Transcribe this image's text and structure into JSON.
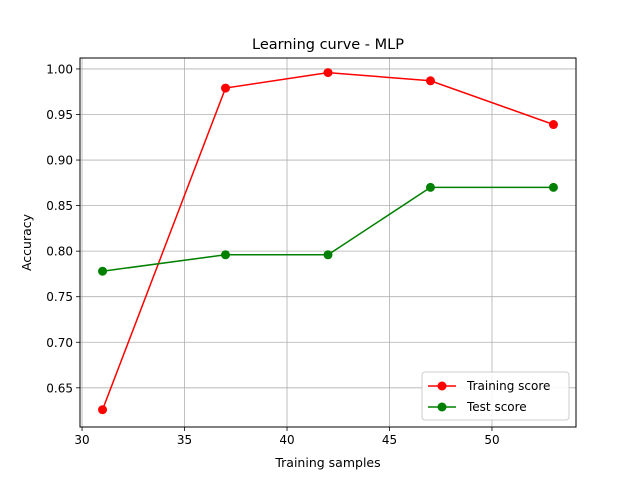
{
  "chart_data": {
    "type": "line",
    "title": "Learning curve - MLP",
    "xlabel": "Training samples",
    "ylabel": "Accuracy",
    "xlim": [
      29.9,
      54.1
    ],
    "ylim": [
      0.607,
      1.012
    ],
    "xticks": [
      30,
      35,
      40,
      45,
      50
    ],
    "yticks": [
      0.65,
      0.7,
      0.75,
      0.8,
      0.85,
      0.9,
      0.95,
      1.0
    ],
    "xtick_labels": [
      "30",
      "35",
      "40",
      "45",
      "50"
    ],
    "ytick_labels": [
      "0.65",
      "0.70",
      "0.75",
      "0.80",
      "0.85",
      "0.90",
      "0.95",
      "1.00"
    ],
    "grid": true,
    "legend_position": "lower-right",
    "x": [
      31,
      37,
      42,
      47,
      53
    ],
    "series": [
      {
        "name": "Training score",
        "color": "#ff0000",
        "values": [
          0.626,
          0.979,
          0.996,
          0.987,
          0.939
        ]
      },
      {
        "name": "Test score",
        "color": "#008000",
        "values": [
          0.778,
          0.796,
          0.796,
          0.87,
          0.87
        ]
      }
    ]
  }
}
